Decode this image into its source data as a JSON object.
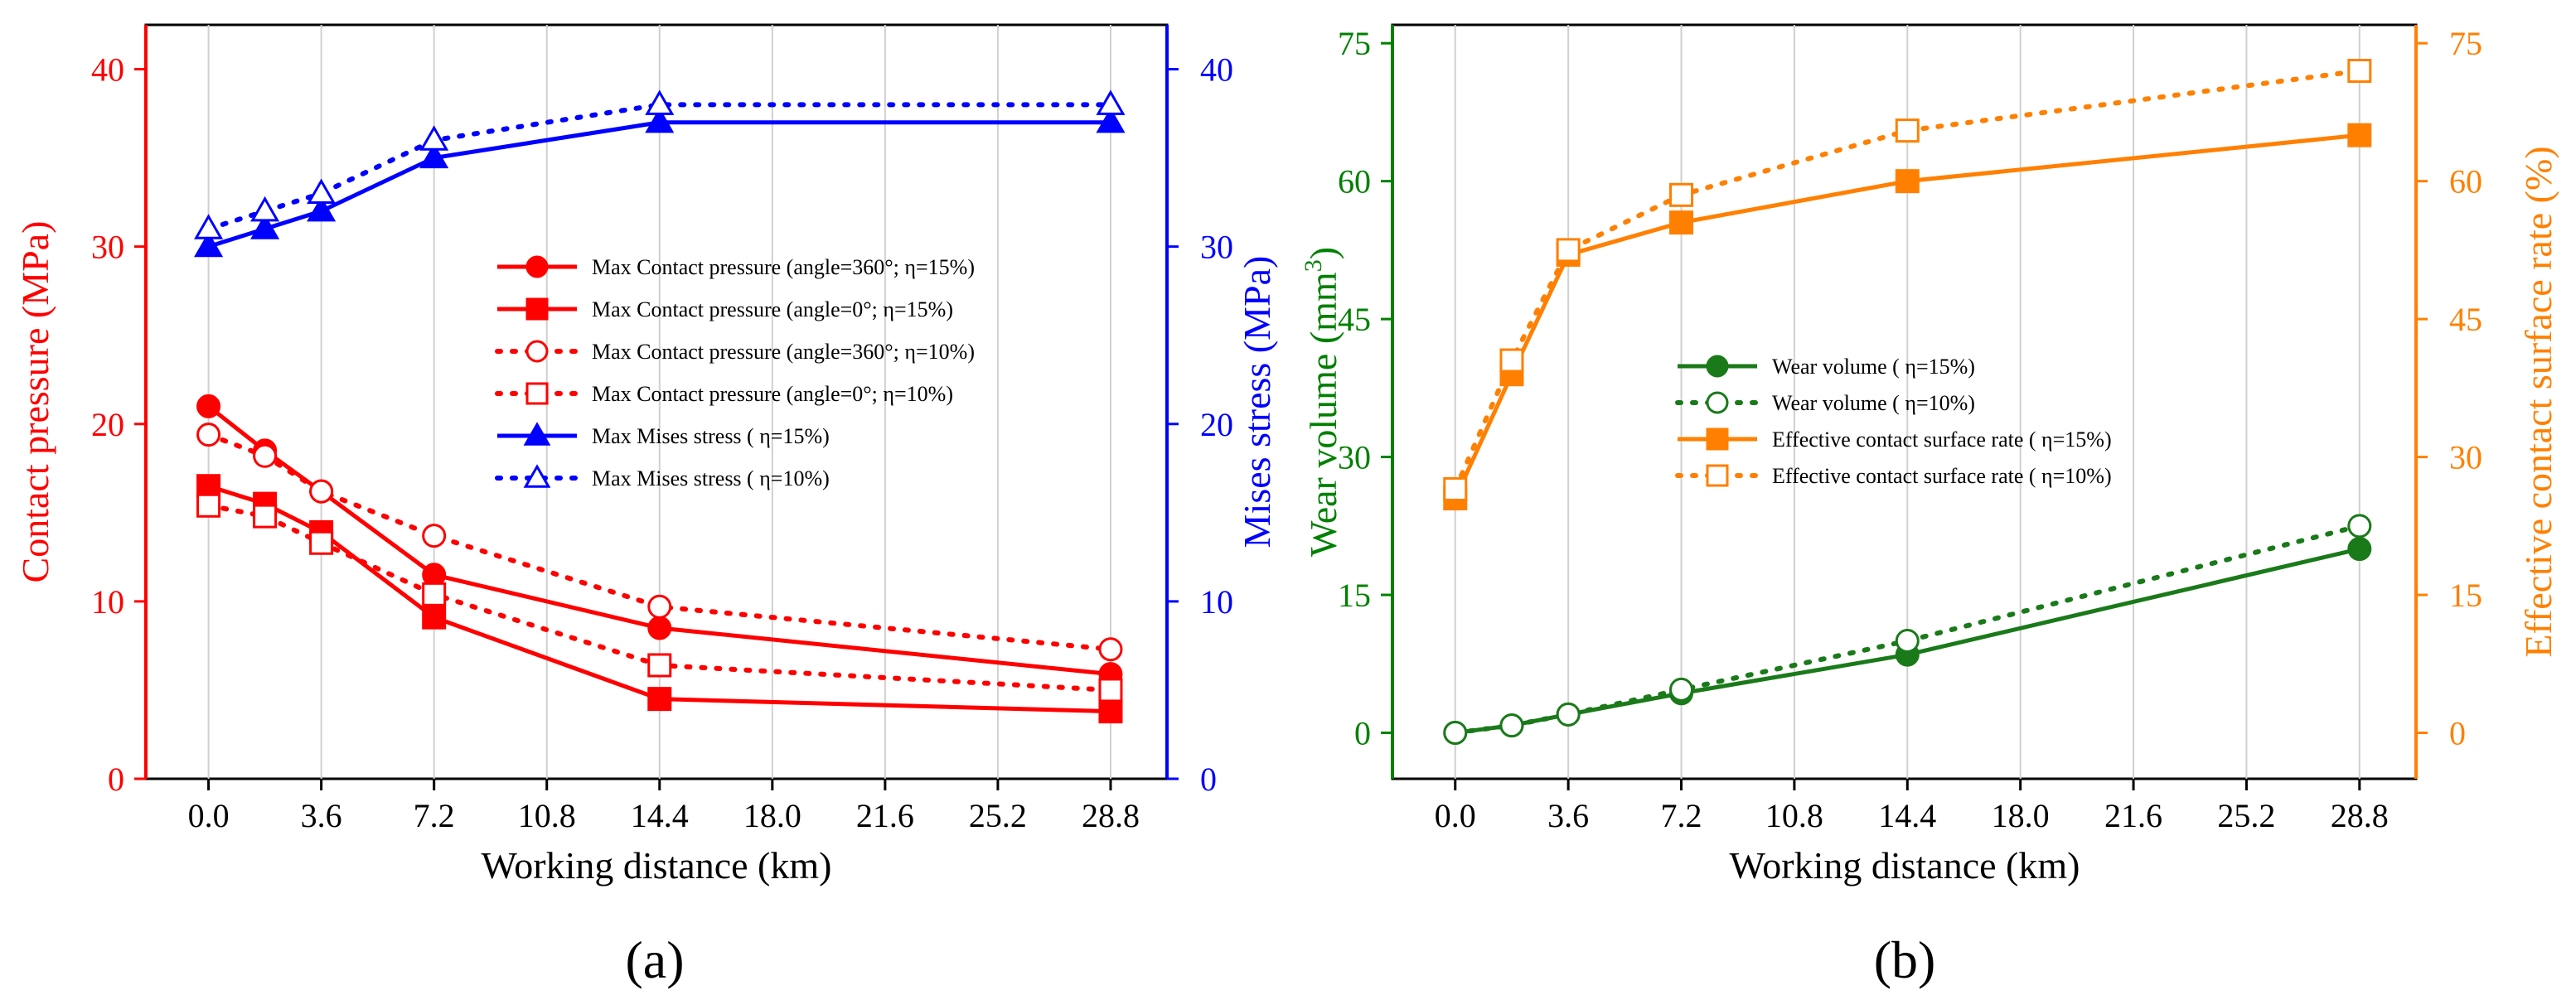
{
  "chart_data": [
    {
      "type": "line",
      "panel_label": "(a)",
      "xlabel": "Working distance (km)",
      "ylabel": "Contact pressure (MPa)",
      "y2label": "Mises stress (MPa)",
      "xlim": [
        -2,
        30.6
      ],
      "ylim": [
        0,
        42.5
      ],
      "y2lim": [
        0,
        42.5
      ],
      "xticks": [
        0,
        3.6,
        7.2,
        10.8,
        14.4,
        18.0,
        21.6,
        25.2,
        28.8
      ],
      "xtick_labels": [
        "0.0",
        "3.6",
        "7.2",
        "10.8",
        "14.4",
        "18.0",
        "21.6",
        "25.2",
        "28.8"
      ],
      "yticks": [
        0,
        10,
        20,
        30,
        40
      ],
      "y2ticks": [
        0,
        10,
        20,
        30,
        40
      ],
      "grid": true,
      "colors": {
        "left_axis": "#ff0000",
        "right_axis": "#0000ff"
      },
      "legend_position": "center-right",
      "series": [
        {
          "name": "Max Contact pressure (angle=360°; η=15%)",
          "axis": "left",
          "color": "#ff0000",
          "marker": "circle",
          "filled": true,
          "dashed": false,
          "x": [
            0,
            1.8,
            3.6,
            7.2,
            14.4,
            28.8
          ],
          "y": [
            21,
            18.5,
            16.2,
            11.5,
            8.5,
            5.9
          ]
        },
        {
          "name": "Max Contact pressure (angle=0°; η=15%)",
          "axis": "left",
          "color": "#ff0000",
          "marker": "square",
          "filled": true,
          "dashed": false,
          "x": [
            0,
            1.8,
            3.6,
            7.2,
            14.4,
            28.8
          ],
          "y": [
            16.5,
            15.5,
            13.9,
            9.1,
            4.5,
            3.8
          ]
        },
        {
          "name": "Max Contact pressure (angle=360°; η=10%)",
          "axis": "left",
          "color": "#ff0000",
          "marker": "circle",
          "filled": false,
          "dashed": true,
          "x": [
            0,
            1.8,
            3.6,
            7.2,
            14.4,
            28.8
          ],
          "y": [
            19.4,
            18.2,
            16.2,
            13.7,
            9.7,
            7.3
          ]
        },
        {
          "name": "Max Contact pressure (angle=0°; η=10%)",
          "axis": "left",
          "color": "#ff0000",
          "marker": "square",
          "filled": false,
          "dashed": true,
          "x": [
            0,
            1.8,
            3.6,
            7.2,
            14.4,
            28.8
          ],
          "y": [
            15.4,
            14.8,
            13.3,
            10.4,
            6.4,
            5.0
          ]
        },
        {
          "name": "Max Mises stress ( η=15%)",
          "axis": "right",
          "color": "#0000ff",
          "marker": "triangle",
          "filled": true,
          "dashed": false,
          "x": [
            0,
            1.8,
            3.6,
            7.2,
            14.4,
            28.8
          ],
          "y": [
            30,
            31,
            32,
            35,
            37,
            37
          ]
        },
        {
          "name": "Max Mises stress ( η=10%)",
          "axis": "right",
          "color": "#0000ff",
          "marker": "triangle",
          "filled": false,
          "dashed": true,
          "x": [
            0,
            1.8,
            3.6,
            7.2,
            14.4,
            28.8
          ],
          "y": [
            31,
            32,
            33,
            36,
            38,
            38
          ]
        }
      ]
    },
    {
      "type": "line",
      "panel_label": "(b)",
      "xlabel": "Working distance (km)",
      "ylabel": "Wear volume (mm3)",
      "ylabel_main": "Wear volume (mm",
      "ylabel_sup": "3",
      "ylabel_close": ")",
      "y2label": "Effective contact surface rate (%)",
      "xlim": [
        -2,
        30.6
      ],
      "ylim": [
        -5,
        77
      ],
      "y2lim": [
        -5,
        77
      ],
      "xticks": [
        0,
        3.6,
        7.2,
        10.8,
        14.4,
        18.0,
        21.6,
        25.2,
        28.8
      ],
      "xtick_labels": [
        "0.0",
        "3.6",
        "7.2",
        "10.8",
        "14.4",
        "18.0",
        "21.6",
        "25.2",
        "28.8"
      ],
      "yticks": [
        0,
        15,
        30,
        45,
        60,
        75
      ],
      "y2ticks": [
        0,
        15,
        30,
        45,
        60,
        75
      ],
      "grid": true,
      "colors": {
        "left_axis": "#008000",
        "right_axis": "#ff8000"
      },
      "legend_position": "center",
      "series": [
        {
          "name": "Wear volume ( η=15%)",
          "axis": "left",
          "color": "#1a7a1a",
          "marker": "circle",
          "filled": true,
          "dashed": false,
          "x": [
            0,
            1.8,
            3.6,
            7.2,
            14.4,
            28.8
          ],
          "y": [
            0,
            0.8,
            2.0,
            4.3,
            8.5,
            20
          ]
        },
        {
          "name": "Wear volume ( η=10%)",
          "axis": "left",
          "color": "#1a7a1a",
          "marker": "circle",
          "filled": false,
          "dashed": true,
          "x": [
            0,
            1.8,
            3.6,
            7.2,
            14.4,
            28.8
          ],
          "y": [
            0,
            0.8,
            2.0,
            4.7,
            10,
            22.5
          ]
        },
        {
          "name": "Effective contact surface rate ( η=15%)",
          "axis": "right",
          "color": "#ff8000",
          "marker": "square",
          "filled": true,
          "dashed": false,
          "x": [
            0,
            1.8,
            3.6,
            7.2,
            14.4,
            28.8
          ],
          "y": [
            25.5,
            39,
            52,
            55.5,
            60,
            65
          ]
        },
        {
          "name": "Effective contact surface rate ( η=10%)",
          "axis": "right",
          "color": "#ff8000",
          "marker": "square",
          "filled": false,
          "dashed": true,
          "x": [
            0,
            1.8,
            3.6,
            7.2,
            14.4,
            28.8
          ],
          "y": [
            26.5,
            40.5,
            52.5,
            58.5,
            65.5,
            72
          ]
        }
      ]
    }
  ]
}
